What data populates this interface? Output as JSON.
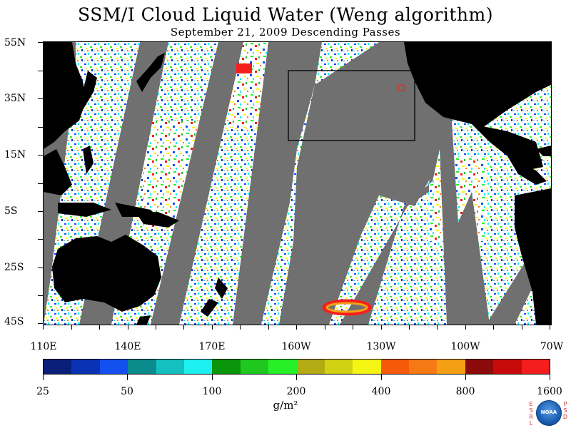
{
  "title": "SSM/I Cloud Liquid Water (Weng algorithm)",
  "subtitle": "September 21, 2009  Descending Passes",
  "lat_labels": [
    "55N",
    "35N",
    "15N",
    "5S",
    "25S",
    "45S"
  ],
  "lon_labels": [
    "110E",
    "140E",
    "170E",
    "160W",
    "130W",
    "100W",
    "70W"
  ],
  "colorbar": {
    "tick_labels": [
      "25",
      "50",
      "100",
      "200",
      "400",
      "800",
      "1600"
    ],
    "colors": [
      "#0a1f7a",
      "#0a32b4",
      "#1450f0",
      "#0a8c8c",
      "#14c0c0",
      "#1ef0f0",
      "#0a960a",
      "#1ec81e",
      "#28f028",
      "#b4aa14",
      "#d2d214",
      "#f5f514",
      "#f55a0a",
      "#f57a14",
      "#f5a014",
      "#8c0a0a",
      "#c80a0a",
      "#f51e1e"
    ],
    "units": "g/m²"
  },
  "logo": {
    "left_letters": "ESRL",
    "right_letters": "PSD",
    "center_text": "NOAA"
  }
}
